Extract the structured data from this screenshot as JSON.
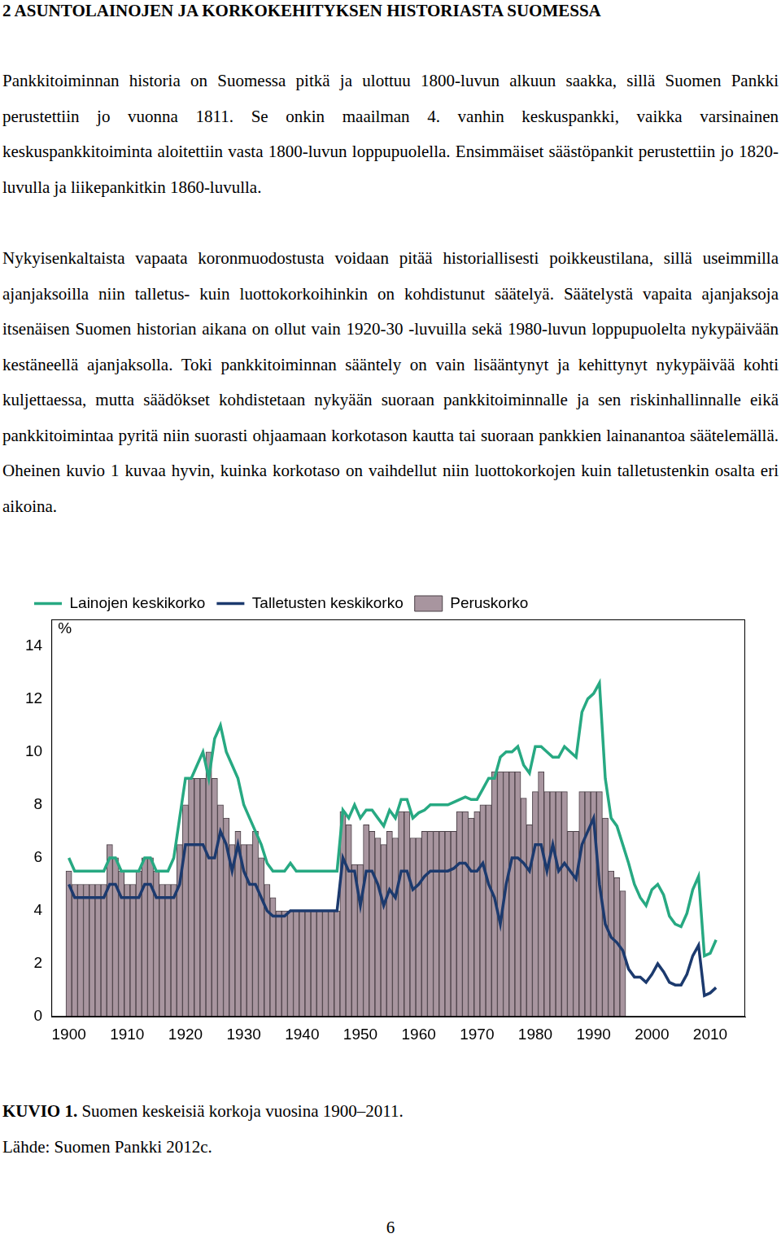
{
  "heading": "2 ASUNTOLAINOJEN JA KORKOKEHITYKSEN HISTORIASTA SUOMESSA",
  "paragraphs": [
    "Pankkitoiminnan historia on Suomessa pitkä ja ulottuu 1800-luvun alkuun saakka, sillä Suomen Pankki perustettiin jo vuonna 1811. Se onkin maailman 4. vanhin keskuspankki, vaikka varsinainen keskuspankkitoiminta aloitettiin vasta 1800-luvun loppupuolella. Ensimmäiset säästöpankit perustettiin jo 1820-luvulla ja liikepankitkin 1860-luvulla.",
    "Nykyisenkaltaista vapaata koronmuodostusta voidaan pitää historiallisesti poikkeustilana, sillä useimmilla ajanjaksoilla niin talletus- kuin luottokorkoihinkin on kohdistunut säätelyä. Säätelystä vapaita ajanjaksoja itsenäisen Suomen historian aikana on ollut vain 1920-30 -luvuilla sekä 1980-luvun loppupuolelta nykypäivään kestäneellä ajanjaksolla. Toki pankkitoiminnan sääntely on vain lisääntynyt ja kehittynyt nykypäivää kohti kuljettaessa, mutta säädökset kohdistetaan nykyään suoraan pankkitoiminnalle ja sen riskinhallinnalle eikä pankkitoimintaa pyritä niin suorasti ohjaamaan korkotason kautta tai suoraan pankkien lainanantoa säätelemällä. Oheinen kuvio 1 kuvaa hyvin, kuinka korkotaso on vaihdellut niin luottokorkojen kuin talletustenkin osalta eri aikoina."
  ],
  "chart_data": {
    "type": "bar",
    "y_label": "%",
    "legend": "top",
    "grid": false,
    "xlim": [
      1897,
      2016
    ],
    "xticks": [
      1900,
      1910,
      1920,
      1930,
      1940,
      1950,
      1960,
      1970,
      1980,
      1990,
      2000,
      2010
    ],
    "ylim": [
      0,
      15
    ],
    "yticks": [
      0,
      2,
      4,
      6,
      8,
      10,
      12,
      14
    ],
    "x": [
      1900,
      1901,
      1902,
      1903,
      1904,
      1905,
      1906,
      1907,
      1908,
      1909,
      1910,
      1911,
      1912,
      1913,
      1914,
      1915,
      1916,
      1917,
      1918,
      1919,
      1920,
      1921,
      1922,
      1923,
      1924,
      1925,
      1926,
      1927,
      1928,
      1929,
      1930,
      1931,
      1932,
      1933,
      1934,
      1935,
      1936,
      1937,
      1938,
      1939,
      1940,
      1941,
      1942,
      1943,
      1944,
      1945,
      1946,
      1947,
      1948,
      1949,
      1950,
      1951,
      1952,
      1953,
      1954,
      1955,
      1956,
      1957,
      1958,
      1959,
      1960,
      1961,
      1962,
      1963,
      1964,
      1965,
      1966,
      1967,
      1968,
      1969,
      1970,
      1971,
      1972,
      1973,
      1974,
      1975,
      1976,
      1977,
      1978,
      1979,
      1980,
      1981,
      1982,
      1983,
      1984,
      1985,
      1986,
      1987,
      1988,
      1989,
      1990,
      1991,
      1992,
      1993,
      1994,
      1995,
      1996,
      1997,
      1998,
      1999,
      2000,
      2001,
      2002,
      2003,
      2004,
      2005,
      2006,
      2007,
      2008,
      2009,
      2010,
      2011
    ],
    "series": [
      {
        "name": "Peruskorko",
        "type": "bar",
        "color": "#a8959f",
        "values": [
          5.5,
          5,
          5,
          5,
          5,
          5,
          5,
          6.5,
          6,
          5.5,
          5,
          5,
          5.5,
          6,
          6,
          5.5,
          5,
          5,
          5,
          6.5,
          8,
          9,
          9,
          9,
          10,
          9,
          8,
          7.5,
          6.5,
          7,
          6.5,
          6.5,
          7,
          6,
          5,
          4.5,
          4,
          4,
          4,
          4,
          4,
          4,
          4,
          4,
          4,
          4,
          4,
          7.75,
          7.25,
          5.75,
          5.75,
          7.25,
          7,
          6.75,
          6.5,
          7,
          6.75,
          7.75,
          7.75,
          6.75,
          6.75,
          7,
          7,
          7,
          7,
          7,
          7,
          7.75,
          7.75,
          7.5,
          7.75,
          8,
          8,
          9.25,
          9.25,
          9.25,
          9.25,
          9.25,
          8.25,
          7.25,
          8.5,
          9.25,
          8.5,
          8.5,
          8.5,
          8.5,
          7,
          7,
          8.5,
          8.5,
          8.5,
          8.5,
          7.5,
          5.5,
          5.25,
          4.75,
          null,
          null,
          null,
          null,
          null,
          null,
          null,
          null,
          null,
          null,
          null,
          null,
          null,
          null,
          null,
          null
        ]
      },
      {
        "name": "Lainojen keskikorko",
        "type": "line",
        "color": "#27a982",
        "values": [
          6,
          5.5,
          5.5,
          5.5,
          5.5,
          5.5,
          5.5,
          6,
          6,
          5.5,
          5.5,
          5.5,
          5.5,
          6,
          6,
          5.5,
          5.5,
          5.5,
          6,
          7.5,
          9,
          9,
          9.5,
          10,
          9,
          10.5,
          11,
          10,
          9.5,
          9,
          8,
          7.5,
          7,
          6.5,
          5.8,
          5.5,
          5.5,
          5.5,
          5.8,
          5.5,
          5.5,
          5.5,
          5.5,
          5.5,
          5.5,
          5.5,
          5.5,
          7.8,
          7.5,
          8,
          7.5,
          7.8,
          7.8,
          7.5,
          7.2,
          7.8,
          7.5,
          8.2,
          8.2,
          7.5,
          7.7,
          7.8,
          8,
          8,
          8,
          8,
          8.1,
          8.2,
          8.3,
          8.2,
          8.2,
          8.6,
          9,
          9,
          9.8,
          10,
          10,
          10.2,
          9.5,
          9.2,
          10.2,
          10.2,
          10,
          9.8,
          9.8,
          10.2,
          10,
          9.8,
          11.5,
          12,
          12.2,
          12.6,
          9,
          7.5,
          7.2,
          6.5,
          5.8,
          5,
          4.5,
          4.2,
          4.8,
          5,
          4.6,
          3.8,
          3.5,
          3.4,
          3.9,
          4.8,
          5.3,
          2.3,
          2.4,
          2.9
        ]
      },
      {
        "name": "Talletusten keskikorko",
        "type": "line",
        "color": "#1c3a6e",
        "values": [
          5,
          4.5,
          4.5,
          4.5,
          4.5,
          4.5,
          4.5,
          5,
          5,
          4.5,
          4.5,
          4.5,
          4.5,
          5,
          5,
          4.5,
          4.5,
          4.5,
          4.5,
          5,
          6.5,
          6.5,
          6.5,
          6.5,
          6,
          6,
          7,
          6.5,
          5.5,
          6.5,
          5.5,
          5,
          5,
          4.5,
          4,
          3.8,
          3.8,
          3.8,
          4,
          4,
          4,
          4,
          4,
          4,
          4,
          4,
          4,
          6,
          5.5,
          5.5,
          4.2,
          5.5,
          5.5,
          5,
          4.2,
          4.8,
          4.5,
          5.5,
          5.5,
          4.8,
          5,
          5.3,
          5.5,
          5.5,
          5.5,
          5.5,
          5.6,
          5.8,
          5.8,
          5.5,
          5.5,
          5.8,
          5,
          4.5,
          3.5,
          5,
          6,
          6,
          5.8,
          5.5,
          6.5,
          6.5,
          5.5,
          6.5,
          5.5,
          5.8,
          5.5,
          5.2,
          6.5,
          7,
          7.5,
          5,
          3.5,
          3,
          2.8,
          2.5,
          1.8,
          1.5,
          1.5,
          1.3,
          1.6,
          2,
          1.7,
          1.3,
          1.2,
          1.2,
          1.6,
          2.3,
          2.7,
          0.8,
          0.9,
          1.1
        ]
      }
    ]
  },
  "caption": {
    "label": "KUVIO 1.",
    "text": "Suomen keskeisiä korkoja vuosina 1900–2011."
  },
  "source": "Lähde: Suomen Pankki 2012c.",
  "page_number": "6"
}
